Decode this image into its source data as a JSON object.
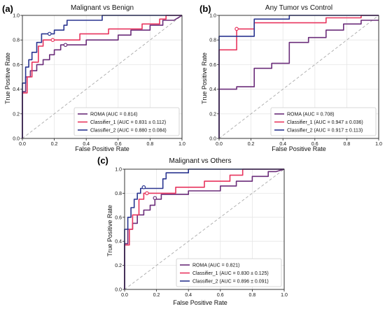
{
  "colors": {
    "ROMA": "#6b2d7a",
    "Classifier_1": "#e8355e",
    "Classifier_2": "#2a3590",
    "diagonal": "#aaaaaa",
    "grid": "#e6e6e6"
  },
  "chart_data": [
    {
      "type": "line",
      "panel": "(a)",
      "title": "Malignant vs Benign",
      "xlabel": "False Positive Rate",
      "ylabel": "True Positive Rate",
      "xlim": [
        0,
        1
      ],
      "ylim": [
        0,
        1
      ],
      "xticks": [
        "0.0",
        "0.2",
        "0.4",
        "0.6",
        "0.8",
        "1.0"
      ],
      "yticks": [
        "0.0",
        "0.2",
        "0.4",
        "0.6",
        "0.8",
        "1.0"
      ],
      "grid": true,
      "legend": "bottom-right",
      "series": [
        {
          "name": "ROMA (AUC = 0.814)",
          "key": "ROMA",
          "points": [
            [
              0,
              0
            ],
            [
              0,
              0.38
            ],
            [
              0.02,
              0.38
            ],
            [
              0.02,
              0.5
            ],
            [
              0.05,
              0.5
            ],
            [
              0.05,
              0.55
            ],
            [
              0.09,
              0.55
            ],
            [
              0.09,
              0.6
            ],
            [
              0.13,
              0.6
            ],
            [
              0.13,
              0.64
            ],
            [
              0.17,
              0.64
            ],
            [
              0.17,
              0.68
            ],
            [
              0.2,
              0.68
            ],
            [
              0.2,
              0.72
            ],
            [
              0.24,
              0.72
            ],
            [
              0.24,
              0.76
            ],
            [
              0.4,
              0.76
            ],
            [
              0.4,
              0.8
            ],
            [
              0.6,
              0.8
            ],
            [
              0.6,
              0.84
            ],
            [
              0.68,
              0.84
            ],
            [
              0.68,
              0.88
            ],
            [
              0.8,
              0.88
            ],
            [
              0.8,
              0.92
            ],
            [
              0.88,
              0.92
            ],
            [
              0.88,
              0.96
            ],
            [
              0.95,
              0.96
            ],
            [
              1,
              1
            ]
          ]
        },
        {
          "name": "Classifier_1 (AUC = 0.831 ± 0.112)",
          "key": "Classifier_1",
          "points": [
            [
              0,
              0
            ],
            [
              0,
              0.37
            ],
            [
              0.03,
              0.37
            ],
            [
              0.03,
              0.5
            ],
            [
              0.06,
              0.5
            ],
            [
              0.06,
              0.62
            ],
            [
              0.1,
              0.62
            ],
            [
              0.1,
              0.75
            ],
            [
              0.13,
              0.75
            ],
            [
              0.13,
              0.8
            ],
            [
              0.36,
              0.8
            ],
            [
              0.36,
              0.85
            ],
            [
              0.54,
              0.85
            ],
            [
              0.54,
              0.89
            ],
            [
              0.75,
              0.89
            ],
            [
              0.75,
              0.93
            ],
            [
              0.86,
              0.93
            ],
            [
              0.86,
              0.97
            ],
            [
              0.9,
              0.97
            ],
            [
              0.9,
              1
            ],
            [
              1,
              1
            ]
          ]
        },
        {
          "name": "Classifier_2 (AUC = 0.880 ± 0.084)",
          "key": "Classifier_2",
          "points": [
            [
              0,
              0
            ],
            [
              0,
              0.45
            ],
            [
              0.02,
              0.45
            ],
            [
              0.02,
              0.58
            ],
            [
              0.04,
              0.58
            ],
            [
              0.04,
              0.64
            ],
            [
              0.06,
              0.64
            ],
            [
              0.06,
              0.7
            ],
            [
              0.09,
              0.7
            ],
            [
              0.09,
              0.78
            ],
            [
              0.12,
              0.78
            ],
            [
              0.12,
              0.85
            ],
            [
              0.2,
              0.85
            ],
            [
              0.2,
              0.88
            ],
            [
              0.26,
              0.88
            ],
            [
              0.26,
              0.92
            ],
            [
              0.28,
              0.92
            ],
            [
              0.28,
              0.96
            ],
            [
              0.5,
              0.96
            ],
            [
              0.5,
              1
            ],
            [
              1,
              1
            ]
          ]
        }
      ],
      "markers": [
        {
          "key": "ROMA",
          "x": 0.27,
          "y": 0.76
        },
        {
          "key": "Classifier_1",
          "x": 0.19,
          "y": 0.8
        },
        {
          "key": "Classifier_2",
          "x": 0.17,
          "y": 0.85
        }
      ]
    },
    {
      "type": "line",
      "panel": "(b)",
      "title": "Any Tumor vs Control",
      "xlabel": "False Positive Rate",
      "ylabel": "True Positive Rate",
      "xlim": [
        0,
        1
      ],
      "ylim": [
        0,
        1
      ],
      "xticks": [
        "0.0",
        "0.2",
        "0.4",
        "0.6",
        "0.8",
        "1.0"
      ],
      "yticks": [
        "0.0",
        "0.2",
        "0.4",
        "0.6",
        "0.8",
        "1.0"
      ],
      "grid": true,
      "legend": "bottom-right",
      "series": [
        {
          "name": "ROMA (AUC = 0.708)",
          "key": "ROMA",
          "points": [
            [
              0,
              0
            ],
            [
              0,
              0.4
            ],
            [
              0.11,
              0.4
            ],
            [
              0.11,
              0.42
            ],
            [
              0.22,
              0.42
            ],
            [
              0.22,
              0.57
            ],
            [
              0.33,
              0.57
            ],
            [
              0.33,
              0.61
            ],
            [
              0.44,
              0.61
            ],
            [
              0.44,
              0.78
            ],
            [
              0.56,
              0.78
            ],
            [
              0.56,
              0.82
            ],
            [
              0.67,
              0.82
            ],
            [
              0.67,
              0.88
            ],
            [
              0.78,
              0.88
            ],
            [
              0.78,
              0.93
            ],
            [
              0.89,
              0.93
            ],
            [
              0.89,
              0.96
            ],
            [
              1,
              0.96
            ]
          ]
        },
        {
          "name": "Classifier_1 (AUC = 0.947 ± 0.036)",
          "key": "Classifier_1",
          "points": [
            [
              0,
              0
            ],
            [
              0,
              0.72
            ],
            [
              0.11,
              0.72
            ],
            [
              0.11,
              0.89
            ],
            [
              0.22,
              0.89
            ],
            [
              0.22,
              0.94
            ],
            [
              0.67,
              0.94
            ],
            [
              0.67,
              0.98
            ],
            [
              0.89,
              0.98
            ],
            [
              0.89,
              1
            ],
            [
              1,
              1
            ]
          ]
        },
        {
          "name": "Classifier_2 (AUC = 0.917 ± 0.113)",
          "key": "Classifier_2",
          "points": [
            [
              0,
              0
            ],
            [
              0,
              0.83
            ],
            [
              0.22,
              0.83
            ],
            [
              0.22,
              0.97
            ],
            [
              0.44,
              0.97
            ],
            [
              0.44,
              1
            ],
            [
              1,
              1
            ]
          ]
        }
      ],
      "markers": [
        {
          "key": "Classifier_1",
          "x": 0.11,
          "y": 0.89
        }
      ]
    },
    {
      "type": "line",
      "panel": "(c)",
      "title": "Malignant vs Others",
      "xlabel": "False Positive Rate",
      "ylabel": "True Positive Rate",
      "xlim": [
        0,
        1
      ],
      "ylim": [
        0,
        1
      ],
      "xticks": [
        "0.0",
        "0.2",
        "0.4",
        "0.6",
        "0.8",
        "1.0"
      ],
      "yticks": [
        "0.0",
        "0.2",
        "0.4",
        "0.6",
        "0.8",
        "1.0"
      ],
      "grid": true,
      "legend": "bottom-right",
      "series": [
        {
          "name": "ROMA (AUC = 0.821)",
          "key": "ROMA",
          "points": [
            [
              0,
              0
            ],
            [
              0,
              0.38
            ],
            [
              0.02,
              0.38
            ],
            [
              0.02,
              0.5
            ],
            [
              0.05,
              0.5
            ],
            [
              0.05,
              0.55
            ],
            [
              0.08,
              0.55
            ],
            [
              0.08,
              0.62
            ],
            [
              0.12,
              0.62
            ],
            [
              0.12,
              0.66
            ],
            [
              0.16,
              0.66
            ],
            [
              0.16,
              0.7
            ],
            [
              0.19,
              0.7
            ],
            [
              0.19,
              0.75
            ],
            [
              0.23,
              0.75
            ],
            [
              0.23,
              0.79
            ],
            [
              0.4,
              0.79
            ],
            [
              0.4,
              0.82
            ],
            [
              0.6,
              0.82
            ],
            [
              0.6,
              0.86
            ],
            [
              0.7,
              0.86
            ],
            [
              0.7,
              0.9
            ],
            [
              0.8,
              0.9
            ],
            [
              0.8,
              0.94
            ],
            [
              0.9,
              0.94
            ],
            [
              0.9,
              0.98
            ],
            [
              0.95,
              0.98
            ],
            [
              1,
              1
            ]
          ]
        },
        {
          "name": "Classifier_1 (AUC = 0.830 ± 0.125)",
          "key": "Classifier_1",
          "points": [
            [
              0,
              0
            ],
            [
              0,
              0.37
            ],
            [
              0.03,
              0.37
            ],
            [
              0.03,
              0.5
            ],
            [
              0.05,
              0.5
            ],
            [
              0.05,
              0.62
            ],
            [
              0.09,
              0.62
            ],
            [
              0.09,
              0.75
            ],
            [
              0.12,
              0.75
            ],
            [
              0.12,
              0.8
            ],
            [
              0.32,
              0.8
            ],
            [
              0.32,
              0.85
            ],
            [
              0.5,
              0.85
            ],
            [
              0.5,
              0.9
            ],
            [
              0.66,
              0.9
            ],
            [
              0.66,
              0.95
            ],
            [
              0.74,
              0.95
            ],
            [
              0.74,
              1
            ],
            [
              1,
              1
            ]
          ]
        },
        {
          "name": "Classifier_2 (AUC = 0.896 ± 0.091)",
          "key": "Classifier_2",
          "points": [
            [
              0,
              0
            ],
            [
              0,
              0.5
            ],
            [
              0.02,
              0.5
            ],
            [
              0.02,
              0.6
            ],
            [
              0.04,
              0.6
            ],
            [
              0.04,
              0.68
            ],
            [
              0.06,
              0.68
            ],
            [
              0.06,
              0.75
            ],
            [
              0.08,
              0.75
            ],
            [
              0.08,
              0.8
            ],
            [
              0.1,
              0.8
            ],
            [
              0.1,
              0.84
            ],
            [
              0.24,
              0.84
            ],
            [
              0.24,
              0.92
            ],
            [
              0.26,
              0.92
            ],
            [
              0.26,
              0.97
            ],
            [
              0.4,
              0.97
            ],
            [
              0.4,
              1
            ],
            [
              1,
              1
            ]
          ]
        }
      ],
      "markers": [
        {
          "key": "ROMA",
          "x": 0.19,
          "y": 0.76
        },
        {
          "key": "Classifier_1",
          "x": 0.14,
          "y": 0.8
        },
        {
          "key": "Classifier_2",
          "x": 0.12,
          "y": 0.85
        }
      ]
    }
  ]
}
